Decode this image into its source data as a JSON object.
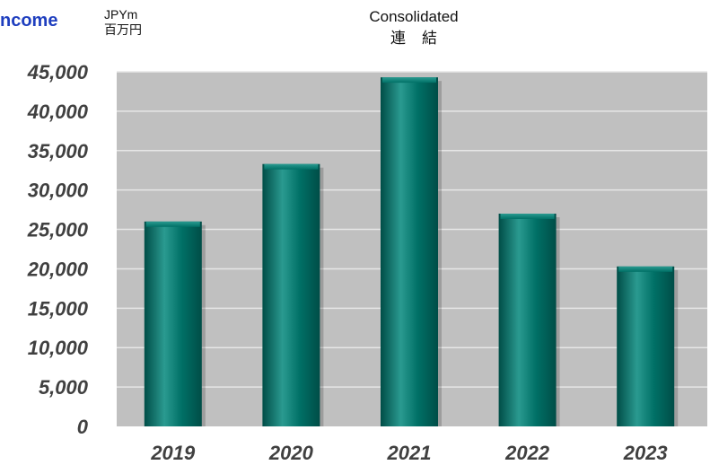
{
  "header": {
    "left_title": "ncome",
    "unit_en": "JPYm",
    "unit_jp": "百万円",
    "title_en": "Consolidated",
    "title_jp": "連結"
  },
  "colors": {
    "plot_bg": "#c0c0c0",
    "bar": "#007066",
    "bar_dark": "#004d47",
    "bar_light": "#2a9a90",
    "gridline": "#e6e6e6",
    "title_blue": "#1f3fbf",
    "tick_text": "#404040"
  },
  "chart_data": {
    "type": "bar",
    "categories": [
      "2019",
      "2020",
      "2021",
      "2022",
      "2023"
    ],
    "values": [
      26000,
      33300,
      44300,
      27000,
      20300
    ],
    "ylim": [
      0,
      45000
    ],
    "yticks": [
      0,
      5000,
      10000,
      15000,
      20000,
      25000,
      30000,
      35000,
      40000,
      45000
    ],
    "ytick_labels": [
      "0",
      "5,000",
      "10,000",
      "15,000",
      "20,000",
      "25,000",
      "30,000",
      "35,000",
      "40,000",
      "45,000"
    ],
    "grid": true,
    "legend": "none"
  }
}
